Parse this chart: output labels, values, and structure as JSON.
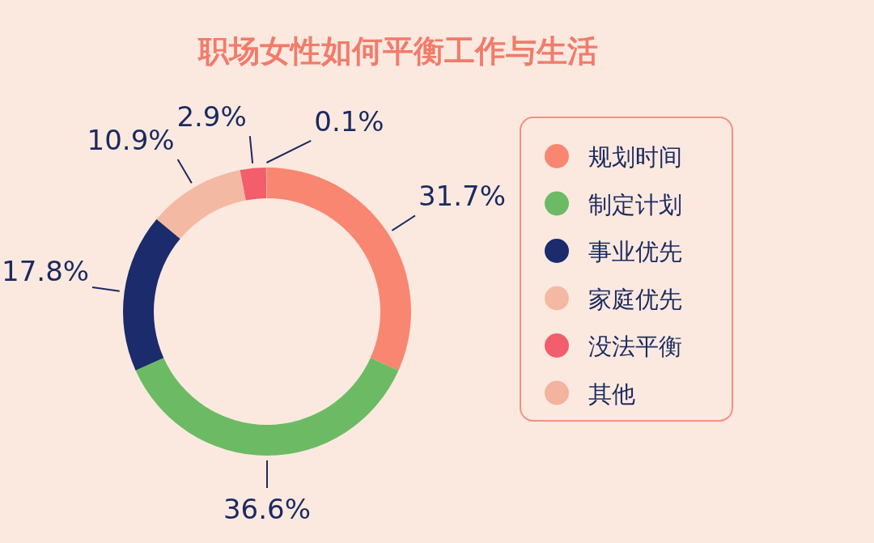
{
  "chart_data": {
    "type": "donut",
    "title": "职场女性如何平衡工作与生活",
    "categories": [
      "规划时间",
      "制定计划",
      "事业优先",
      "家庭优先",
      "没法平衡",
      "其他"
    ],
    "values": [
      31.7,
      36.6,
      17.8,
      10.9,
      2.9,
      0.1
    ],
    "colors": [
      "#f98671",
      "#6cbb64",
      "#1b2b6b",
      "#f4b9a2",
      "#f25e6b",
      "#f3b39e"
    ],
    "value_labels": [
      "31.7%",
      "36.6%",
      "17.8%",
      "10.9%",
      "2.9%",
      "0.1%"
    ],
    "legend": "right"
  }
}
